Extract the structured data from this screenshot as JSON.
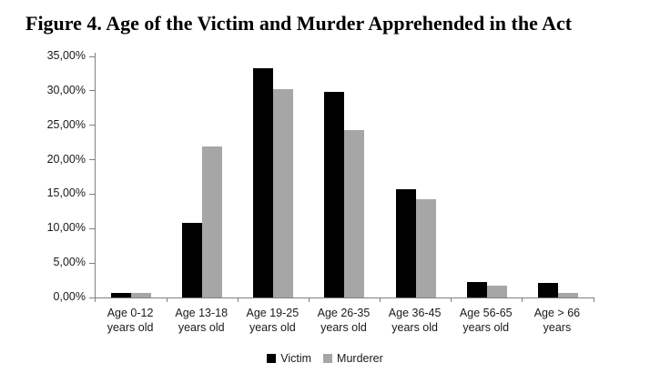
{
  "title": "Figure 4. Age of the Victim and Murder Apprehended in the Act",
  "colors": {
    "victim_bar": "#000000",
    "murderer_bar": "#a6a6a6",
    "axis": "#808080",
    "label_text": "#1a1a1a"
  },
  "chart_data": {
    "type": "bar",
    "title": "Figure 4. Age of the Victim and Murder Apprehended in the Act",
    "categories": [
      {
        "lines": [
          "Age 0-12",
          "years old"
        ]
      },
      {
        "lines": [
          "Age 13-18",
          "years old"
        ]
      },
      {
        "lines": [
          "Age 19-25",
          "years old"
        ]
      },
      {
        "lines": [
          "Age 26-35",
          "years old"
        ]
      },
      {
        "lines": [
          "Age 36-45",
          "years old"
        ]
      },
      {
        "lines": [
          "Age 56-65",
          "years old"
        ]
      },
      {
        "lines": [
          "Age > 66 years"
        ]
      }
    ],
    "series": [
      {
        "name": "Victim",
        "color": "#000000",
        "values": [
          0.7,
          10.8,
          33.3,
          29.9,
          15.7,
          2.2,
          2.1
        ]
      },
      {
        "name": "Murderer",
        "color": "#a6a6a6",
        "values": [
          0.6,
          21.9,
          30.2,
          24.3,
          14.3,
          1.7,
          0.6
        ]
      }
    ],
    "ylim": [
      0,
      35
    ],
    "ytick_step": 5,
    "ytick_labels": [
      "0,00%",
      "5,00%",
      "10,00%",
      "15,00%",
      "20,00%",
      "25,00%",
      "30,00%",
      "35,00%"
    ],
    "grid": false,
    "legend_position": "bottom",
    "value_format": "percent-comma-decimal"
  }
}
